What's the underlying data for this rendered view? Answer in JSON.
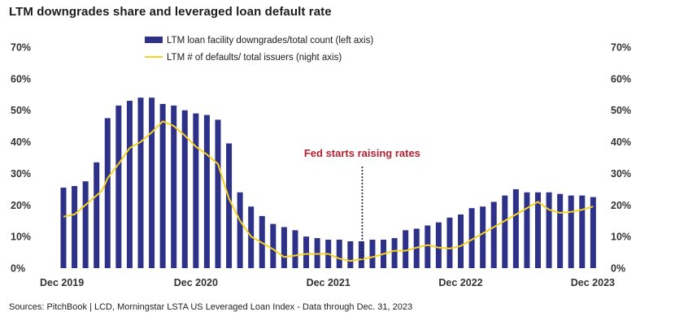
{
  "title": "LTM downgrades share and leveraged loan default rate",
  "source": "Sources: PitchBook | LCD, Morningstar LSTA US Leveraged Loan Index - Data through Dec. 31, 2023",
  "colors": {
    "bars": "#2e3188",
    "line": "#f5d223",
    "annotation": "#b5202e",
    "text": "#333333"
  },
  "chart_data": {
    "type": "bar",
    "x": [
      "Dec 2019",
      "Jan 2020",
      "Feb 2020",
      "Mar 2020",
      "Apr 2020",
      "May 2020",
      "Jun 2020",
      "Jul 2020",
      "Aug 2020",
      "Sep 2020",
      "Oct 2020",
      "Nov 2020",
      "Dec 2020",
      "Jan 2021",
      "Feb 2021",
      "Mar 2021",
      "Apr 2021",
      "May 2021",
      "Jun 2021",
      "Jul 2021",
      "Aug 2021",
      "Sep 2021",
      "Oct 2021",
      "Nov 2021",
      "Dec 2021",
      "Jan 2022",
      "Feb 2022",
      "Mar 2022",
      "Apr 2022",
      "May 2022",
      "Jun 2022",
      "Jul 2022",
      "Aug 2022",
      "Sep 2022",
      "Oct 2022",
      "Nov 2022",
      "Dec 2022",
      "Jan 2023",
      "Feb 2023",
      "Mar 2023",
      "Apr 2023",
      "May 2023",
      "Jun 2023",
      "Jul 2023",
      "Aug 2023",
      "Sep 2023",
      "Oct 2023",
      "Nov 2023",
      "Dec 2023"
    ],
    "x_tick_labels": [
      "Dec 2019",
      "Dec 2020",
      "Dec 2021",
      "Dec 2022",
      "Dec 2023"
    ],
    "series": [
      {
        "name": "LTM loan facility downgrades/total count (left axis)",
        "type": "bar",
        "axis": "left",
        "values": [
          25.5,
          26,
          27.5,
          33.5,
          47.5,
          51.5,
          53,
          54,
          54,
          52,
          51.5,
          50,
          49,
          48.5,
          47,
          39.5,
          24,
          19.5,
          16.5,
          14,
          13,
          12,
          10,
          9.5,
          9,
          9,
          8.5,
          8.5,
          9,
          9,
          9.5,
          12,
          12.5,
          13.5,
          14.5,
          16,
          17,
          19,
          19.5,
          21,
          23,
          25,
          24,
          24,
          24,
          23.5,
          23,
          23,
          22.5
        ]
      },
      {
        "name": "LTM # of defaults/ total issuers (night axis)",
        "type": "line",
        "axis": "right",
        "points": [
          [
            0,
            16.3
          ],
          [
            1,
            17
          ],
          [
            2,
            20
          ],
          [
            3,
            23
          ],
          [
            3.5,
            24.5
          ],
          [
            4,
            28.5
          ],
          [
            5,
            33
          ],
          [
            6,
            38
          ],
          [
            7,
            40
          ],
          [
            8,
            43
          ],
          [
            9,
            46.5
          ],
          [
            10,
            45
          ],
          [
            11,
            42
          ],
          [
            12,
            38.5
          ],
          [
            13,
            36
          ],
          [
            14,
            33
          ],
          [
            15,
            22
          ],
          [
            16,
            15
          ],
          [
            17,
            10
          ],
          [
            18,
            8
          ],
          [
            19,
            6
          ],
          [
            20,
            3.5
          ],
          [
            21,
            4
          ],
          [
            22,
            4.5
          ],
          [
            23,
            4.5
          ],
          [
            24,
            4.5
          ],
          [
            25,
            3
          ],
          [
            26,
            2.3
          ],
          [
            27,
            2.8
          ],
          [
            28,
            3.5
          ],
          [
            29,
            4.5
          ],
          [
            30,
            5.5
          ],
          [
            31,
            5.5
          ],
          [
            32,
            6.5
          ],
          [
            33,
            7.3
          ],
          [
            34,
            6.5
          ],
          [
            35,
            6.2
          ],
          [
            36,
            7
          ],
          [
            37,
            9
          ],
          [
            38,
            11
          ],
          [
            39,
            13
          ],
          [
            40,
            15
          ],
          [
            41,
            17
          ],
          [
            42,
            19
          ],
          [
            43,
            21
          ],
          [
            44,
            18.5
          ],
          [
            45,
            17.5
          ],
          [
            46,
            17.8
          ],
          [
            47,
            18.5
          ],
          [
            48,
            19.5
          ]
        ]
      }
    ],
    "y_left": {
      "lim": [
        0,
        70
      ],
      "ticks": [
        "0%",
        "10%",
        "20%",
        "30%",
        "40%",
        "50%",
        "60%",
        "70%"
      ]
    },
    "y_right": {
      "lim": [
        0,
        70
      ],
      "ticks": [
        "0%",
        "10%",
        "20%",
        "30%",
        "40%",
        "50%",
        "60%",
        "70%"
      ]
    },
    "annotation": {
      "text": "Fed starts raising rates",
      "x_index": 27
    },
    "legend": "top-center",
    "grid": false
  }
}
